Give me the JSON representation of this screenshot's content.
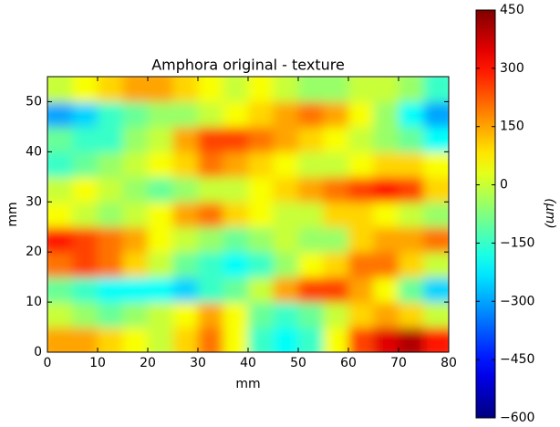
{
  "chart_data": {
    "type": "heatmap",
    "title": "Amphora original - texture",
    "xlabel": "mm",
    "ylabel": "mm",
    "colorbar_label": "(μm)",
    "colormap": "jet",
    "xlim": [
      0,
      80
    ],
    "ylim": [
      0,
      55
    ],
    "xticks": [
      0,
      10,
      20,
      30,
      40,
      50,
      60,
      70,
      80
    ],
    "yticks": [
      0,
      10,
      20,
      30,
      40,
      50
    ],
    "clim": [
      -600,
      450
    ],
    "cticks": [
      {
        "value": -600,
        "label": "−600"
      },
      {
        "value": -450,
        "label": "−450"
      },
      {
        "value": -300,
        "label": "−300"
      },
      {
        "value": -150,
        "label": "−150"
      },
      0,
      150,
      300,
      450
    ],
    "z": [
      [
        150,
        150,
        100,
        50,
        0,
        100,
        200,
        50,
        -150,
        -200,
        -150,
        50,
        250,
        350,
        400,
        300
      ],
      [
        0,
        -50,
        -100,
        -50,
        0,
        50,
        150,
        50,
        -100,
        -150,
        -100,
        0,
        100,
        150,
        100,
        0
      ],
      [
        -100,
        -150,
        -200,
        -200,
        -200,
        -250,
        -150,
        -100,
        0,
        150,
        250,
        250,
        150,
        50,
        -100,
        -250
      ],
      [
        200,
        250,
        200,
        100,
        0,
        -100,
        -150,
        -200,
        -150,
        -50,
        50,
        100,
        200,
        200,
        100,
        0
      ],
      [
        300,
        250,
        200,
        150,
        50,
        0,
        -50,
        -100,
        -50,
        0,
        -50,
        -50,
        100,
        150,
        150,
        200
      ],
      [
        50,
        0,
        -50,
        0,
        50,
        150,
        200,
        100,
        50,
        0,
        0,
        100,
        100,
        50,
        0,
        -50
      ],
      [
        0,
        50,
        0,
        -50,
        -100,
        -50,
        0,
        0,
        50,
        100,
        150,
        200,
        250,
        300,
        250,
        100
      ],
      [
        -150,
        -100,
        -50,
        0,
        50,
        100,
        200,
        150,
        100,
        50,
        0,
        0,
        50,
        100,
        100,
        50
      ],
      [
        -100,
        -150,
        -150,
        -50,
        0,
        150,
        250,
        250,
        200,
        150,
        100,
        50,
        0,
        -50,
        -100,
        -200
      ],
      [
        -300,
        -250,
        -150,
        -100,
        -50,
        -50,
        0,
        50,
        100,
        150,
        200,
        150,
        50,
        -50,
        -200,
        -300
      ],
      [
        0,
        50,
        100,
        150,
        150,
        100,
        50,
        0,
        50,
        0,
        -50,
        -50,
        0,
        0,
        -50,
        -150
      ]
    ]
  }
}
